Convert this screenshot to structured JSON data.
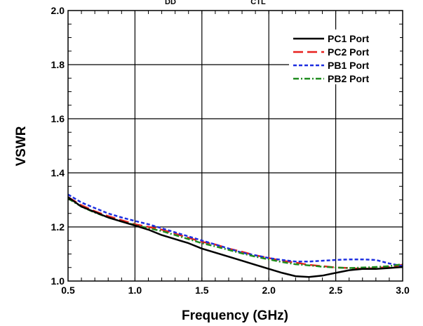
{
  "top_fragments": [
    "DD",
    "CTL"
  ],
  "chart_data": {
    "type": "line",
    "title": "",
    "xlabel": "Frequency (GHz)",
    "ylabel": "VSWR",
    "xlim": [
      0.5,
      3.0
    ],
    "ylim": [
      1.0,
      2.0
    ],
    "x_ticks": [
      "0.5",
      "1.0",
      "1.5",
      "2.0",
      "2.5",
      "3.0"
    ],
    "y_ticks": [
      "1.0",
      "1.2",
      "1.4",
      "1.6",
      "1.8",
      "2.0"
    ],
    "grid": true,
    "legend_position": "top-right",
    "x": [
      0.5,
      0.6,
      0.7,
      0.8,
      0.9,
      1.0,
      1.1,
      1.2,
      1.3,
      1.4,
      1.5,
      1.6,
      1.7,
      1.8,
      1.9,
      2.0,
      2.1,
      2.2,
      2.3,
      2.4,
      2.5,
      2.6,
      2.7,
      2.8,
      2.9,
      3.0
    ],
    "series": [
      {
        "name": "PC1 Port",
        "color": "#000000",
        "dash": "solid",
        "values": [
          1.31,
          1.275,
          1.255,
          1.235,
          1.22,
          1.205,
          1.19,
          1.17,
          1.155,
          1.14,
          1.12,
          1.105,
          1.09,
          1.075,
          1.06,
          1.045,
          1.03,
          1.018,
          1.015,
          1.02,
          1.03,
          1.04,
          1.045,
          1.045,
          1.048,
          1.052
        ]
      },
      {
        "name": "PC2 Port",
        "color": "#e8201e",
        "dash": "long-dash",
        "values": [
          1.31,
          1.28,
          1.258,
          1.24,
          1.225,
          1.21,
          1.2,
          1.19,
          1.175,
          1.16,
          1.145,
          1.135,
          1.12,
          1.108,
          1.095,
          1.085,
          1.075,
          1.068,
          1.06,
          1.055,
          1.05,
          1.048,
          1.045,
          1.048,
          1.052,
          1.06
        ]
      },
      {
        "name": "PB1 Port",
        "color": "#1c2ee0",
        "dash": "short-dash",
        "values": [
          1.32,
          1.29,
          1.27,
          1.25,
          1.235,
          1.222,
          1.21,
          1.195,
          1.18,
          1.165,
          1.15,
          1.135,
          1.12,
          1.105,
          1.095,
          1.085,
          1.078,
          1.072,
          1.072,
          1.075,
          1.078,
          1.08,
          1.08,
          1.078,
          1.065,
          1.055
        ]
      },
      {
        "name": "PB2 Port",
        "color": "#1e8c1e",
        "dash": "dash-dot",
        "values": [
          1.305,
          1.275,
          1.253,
          1.235,
          1.22,
          1.207,
          1.195,
          1.185,
          1.17,
          1.155,
          1.14,
          1.128,
          1.115,
          1.102,
          1.09,
          1.08,
          1.07,
          1.062,
          1.058,
          1.053,
          1.05,
          1.048,
          1.05,
          1.052,
          1.055,
          1.062
        ]
      }
    ]
  }
}
